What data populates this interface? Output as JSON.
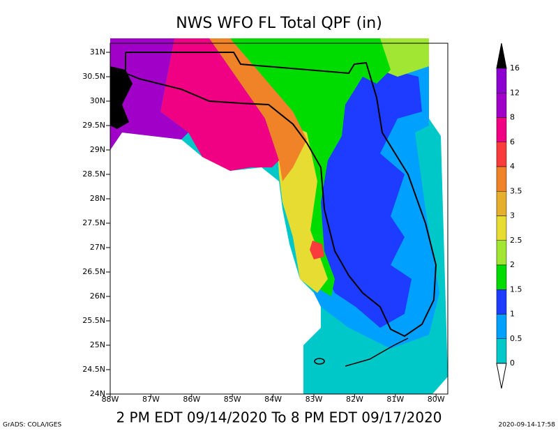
{
  "title": "NWS WFO FL Total QPF (in)",
  "subtitle": "2 PM EDT 09/14/2020 To 8 PM EDT 09/17/2020",
  "credit": "GrADS: COLA/IGES",
  "timestamp": "2020-09-14-17:58",
  "lat_labels": [
    "31N",
    "30.5N",
    "30N",
    "29.5N",
    "29N",
    "28.5N",
    "28N",
    "27.5N",
    "27N",
    "26.5N",
    "26N",
    "25.5N",
    "25N",
    "24.5N",
    "24N"
  ],
  "lon_labels": [
    "88W",
    "87W",
    "86W",
    "85W",
    "84W",
    "83W",
    "82W",
    "81W",
    "80W"
  ],
  "legend": {
    "labels": [
      "16",
      "12",
      "8",
      "6",
      "4",
      "3.5",
      "3",
      "2.5",
      "2",
      "1.5",
      "1",
      "0.5",
      "0"
    ],
    "colors": [
      "#000000",
      "#8c00d2",
      "#a000c8",
      "#f00082",
      "#fa3c3c",
      "#f08228",
      "#e6af2d",
      "#e6dc32",
      "#a0e632",
      "#00dc00",
      "#1e3cff",
      "#00a0ff",
      "#00c8c8",
      "#ffffff"
    ]
  }
}
